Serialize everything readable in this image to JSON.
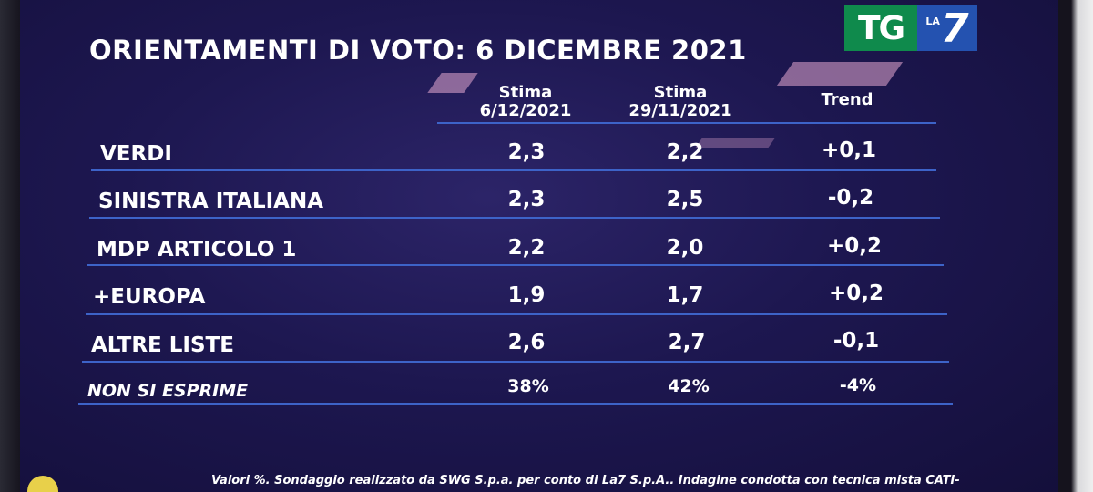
{
  "title": "ORIENTAMENTI DI VOTO: 6 DICEMBRE 2021",
  "logo": {
    "tg": "TG",
    "la": "LA",
    "seven": "7"
  },
  "columns": [
    {
      "line1": "Stima",
      "line2": "6/12/2021"
    },
    {
      "line1": "Stima",
      "line2": "29/11/2021"
    },
    {
      "line1": "Trend",
      "line2": ""
    }
  ],
  "rows": [
    {
      "label": "VERDI",
      "stima_6_12": "2,3",
      "stima_29_11": "2,2",
      "trend": "+0,1"
    },
    {
      "label": "SINISTRA ITALIANA",
      "stima_6_12": "2,3",
      "stima_29_11": "2,5",
      "trend": "-0,2"
    },
    {
      "label": "MDP ARTICOLO 1",
      "stima_6_12": "2,2",
      "stima_29_11": "2,0",
      "trend": "+0,2"
    },
    {
      "label": "+EUROPA",
      "stima_6_12": "1,9",
      "stima_29_11": "1,7",
      "trend": "+0,2"
    },
    {
      "label": "ALTRE LISTE",
      "stima_6_12": "2,6",
      "stima_29_11": "2,7",
      "trend": "-0,1"
    },
    {
      "label": "NON SI ESPRIME",
      "stima_6_12": "38%",
      "stima_29_11": "42%",
      "trend": "-4%"
    }
  ],
  "footer": "Valori %. Sondaggio realizzato da SWG S.p.a. per conto di La7 S.p.A.. Indagine condotta con tecnica mista CATI-",
  "colors": {
    "background": "#1d1750",
    "lines": "#3d63c8",
    "tg_green": "#0f8a4c",
    "la7_blue": "#2452b0"
  }
}
